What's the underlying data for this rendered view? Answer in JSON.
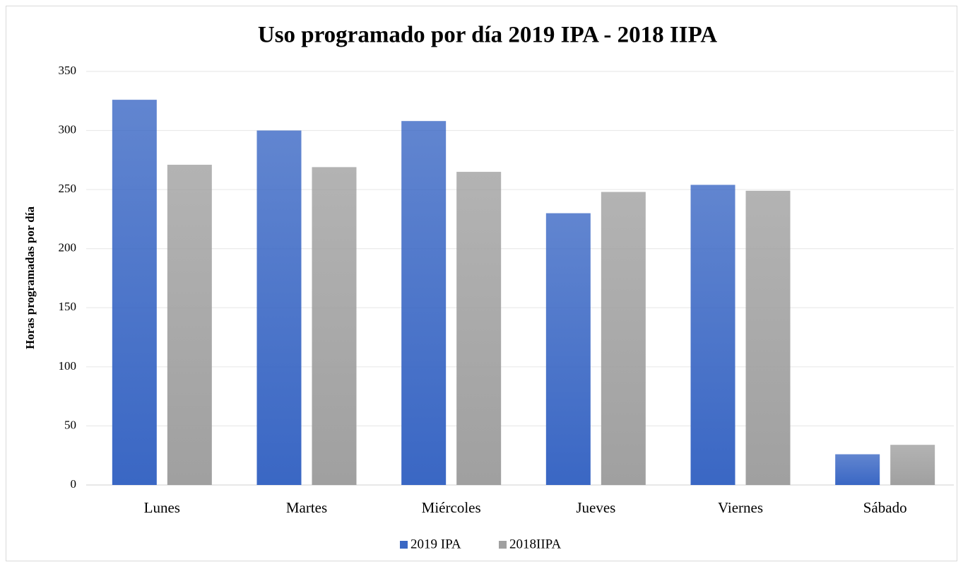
{
  "chart_data": {
    "type": "bar",
    "title": "Uso programado por día 2019 IPA - 2018 IIPA",
    "y_label": "Horas programadas  por día",
    "categories": [
      "Lunes",
      "Martes",
      "Miércoles",
      "Jueves",
      "Viernes",
      "Sábado"
    ],
    "series": [
      {
        "name": "2019 IPA",
        "color": "#3a67c4",
        "values": [
          326,
          300,
          308,
          230,
          254,
          26
        ]
      },
      {
        "name": "2018IIPA",
        "color": "#a0a0a0",
        "values": [
          271,
          269,
          265,
          248,
          249,
          34
        ]
      }
    ],
    "ylim": [
      0,
      350
    ],
    "yticks": [
      0,
      50,
      100,
      150,
      200,
      250,
      300,
      350
    ],
    "grid": true,
    "legend": "bottom"
  }
}
